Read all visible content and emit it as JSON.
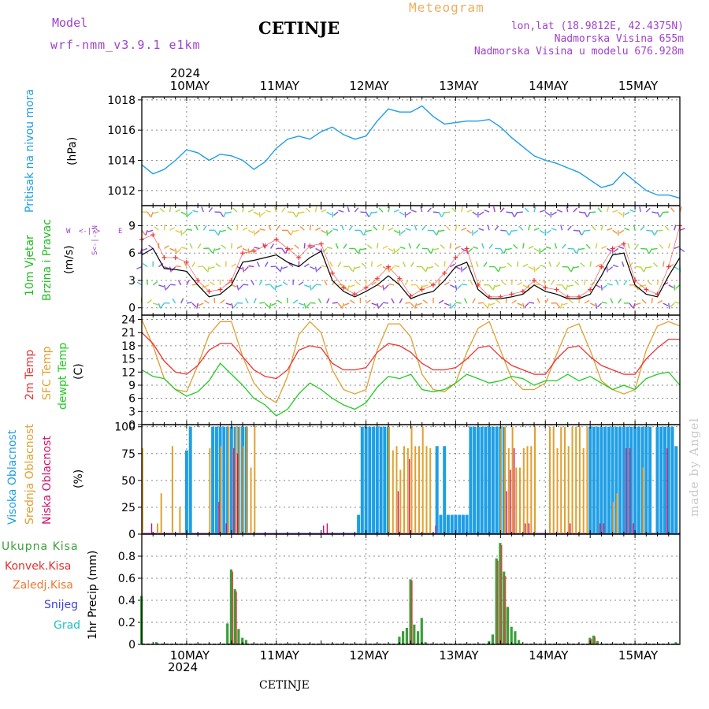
{
  "header": {
    "model_label": "Model",
    "model_name": "wrf-nmm_v3.9.1 e1km",
    "title": "CETINJE",
    "meteogram_label": "Meteogram",
    "location": "lon,lat (18.9812E, 42.4375N)",
    "elevation": "Nadmorska Visina 655m",
    "model_elevation": "Nadmorska Visina u modelu 676.928m",
    "watermark": "made by Angel",
    "footer": "CETINJE"
  },
  "time_axis": {
    "year": "2024",
    "day_labels": [
      "10MAY",
      "11MAY",
      "12MAY",
      "13MAY",
      "14MAY",
      "15MAY"
    ]
  },
  "colors": {
    "pressure": "#1e9ee6",
    "wind_label": "#22bb22",
    "temp_2m": "#ee3333",
    "temp_sfc": "#e0a030",
    "dewpt": "#22cc22",
    "cloud_high": "#1e9ee6",
    "cloud_mid": "#e0a030",
    "cloud_low": "#d0106a",
    "precip_total": "#3aa03a",
    "precip_conv": "#e03030",
    "precip_ice": "#f07830",
    "precip_snow": "#4040dd",
    "precip_grad": "#20c0c0",
    "header_purple": "#a040cc",
    "meteogram_orange": "#e8b060"
  },
  "chart_data": [
    {
      "type": "line",
      "panel": "pressure",
      "ylabel": "Pritisak na nivou mora",
      "unit": "(hPa)",
      "ylim": [
        1011,
        1018.2
      ],
      "yticks": [
        1012,
        1014,
        1016,
        1018
      ],
      "x_hours": [
        0,
        3,
        6,
        9,
        12,
        15,
        18,
        21,
        24,
        27,
        30,
        33,
        36,
        39,
        42,
        45,
        48,
        51,
        54,
        57,
        60,
        63,
        66,
        69,
        72,
        75,
        78,
        81,
        84,
        87,
        90,
        93,
        96,
        99,
        102,
        105,
        108,
        111,
        114,
        117,
        120,
        123,
        126,
        129,
        132,
        135,
        138,
        141,
        144
      ],
      "series": [
        {
          "values": [
            1013.7,
            1013.1,
            1013.4,
            1014.0,
            1014.7,
            1014.5,
            1014.0,
            1014.4,
            1014.3,
            1014.0,
            1013.4,
            1013.9,
            1014.8,
            1015.4,
            1015.6,
            1015.4,
            1015.9,
            1016.2,
            1015.7,
            1015.4,
            1015.6,
            1016.6,
            1017.4,
            1017.2,
            1017.2,
            1017.6,
            1016.9,
            1016.4,
            1016.5,
            1016.6,
            1016.6,
            1016.7,
            1016.2,
            1015.5,
            1014.9,
            1014.3,
            1014.0,
            1013.8,
            1013.5,
            1013.2,
            1012.7,
            1012.2,
            1012.4,
            1013.2,
            1012.6,
            1012.0,
            1011.7,
            1011.7,
            1011.5
          ]
        }
      ]
    },
    {
      "type": "line",
      "panel": "wind",
      "ylabel": "10m Vjetar",
      "ylabel2": "Brzina i Pravac",
      "unit": "(m/s)",
      "compass": [
        "W",
        "<-|->",
        "E",
        "S",
        "N"
      ],
      "ylim": [
        -0.8,
        11.2
      ],
      "yticks": [
        0,
        3,
        6,
        9
      ],
      "x_hours": [
        0,
        3,
        6,
        9,
        12,
        15,
        18,
        21,
        24,
        27,
        30,
        33,
        36,
        39,
        42,
        45,
        48,
        51,
        54,
        57,
        60,
        63,
        66,
        69,
        72,
        75,
        78,
        81,
        84,
        87,
        90,
        93,
        96,
        99,
        102,
        105,
        108,
        111,
        114,
        117,
        120,
        123,
        126,
        129,
        132,
        135,
        138,
        141,
        144
      ],
      "series": [
        {
          "values": [
            5.8,
            6.5,
            4.3,
            4.2,
            4.0,
            2.5,
            1.2,
            1.5,
            2.5,
            5.0,
            5.2,
            5.5,
            5.8,
            5.0,
            4.5,
            5.5,
            6.2,
            3.0,
            1.8,
            1.2,
            1.8,
            2.5,
            3.5,
            2.5,
            1.0,
            1.5,
            1.8,
            3.0,
            4.5,
            5.0,
            2.0,
            1.0,
            1.0,
            1.2,
            1.5,
            2.5,
            1.8,
            1.5,
            1.0,
            1.0,
            1.5,
            3.5,
            5.8,
            6.0,
            2.5,
            1.5,
            1.2,
            3.5,
            5.5
          ]
        },
        {
          "values": [
            7.5,
            8.0,
            5.5,
            5.5,
            5.0,
            3.0,
            1.8,
            2.0,
            3.0,
            6.0,
            6.2,
            6.8,
            7.5,
            6.5,
            5.5,
            6.8,
            7.0,
            3.8,
            2.2,
            1.5,
            2.2,
            3.2,
            4.5,
            3.2,
            1.3,
            2.0,
            2.5,
            3.8,
            5.5,
            6.5,
            2.5,
            1.2,
            1.2,
            1.5,
            1.8,
            3.0,
            2.2,
            2.0,
            1.2,
            1.2,
            2.0,
            4.5,
            6.5,
            7.0,
            3.0,
            2.0,
            1.5,
            4.5,
            9.0
          ]
        }
      ]
    },
    {
      "type": "line",
      "panel": "temperature",
      "ylabel": "2m Temp",
      "ylabel2": "SFC Temp",
      "ylabel3": "dewpt Temp",
      "unit": "(C)",
      "ylim": [
        0,
        25
      ],
      "yticks": [
        0,
        3,
        6,
        9,
        12,
        15,
        18,
        21,
        24
      ],
      "x_hours": [
        0,
        3,
        6,
        9,
        12,
        15,
        18,
        21,
        24,
        27,
        30,
        33,
        36,
        39,
        42,
        45,
        48,
        51,
        54,
        57,
        60,
        63,
        66,
        69,
        72,
        75,
        78,
        81,
        84,
        87,
        90,
        93,
        96,
        99,
        102,
        105,
        108,
        111,
        114,
        117,
        120,
        123,
        126,
        129,
        132,
        135,
        138,
        141,
        144
      ],
      "series": [
        {
          "name": "2m Temp",
          "values": [
            21.0,
            18.5,
            14.5,
            12.0,
            11.5,
            13.5,
            17.0,
            18.5,
            18.5,
            15.5,
            12.5,
            11.0,
            10.5,
            12.5,
            17.0,
            18.0,
            17.5,
            14.0,
            12.5,
            12.5,
            13.0,
            16.5,
            18.5,
            18.0,
            16.5,
            14.0,
            12.5,
            12.5,
            13.0,
            15.0,
            17.5,
            18.0,
            15.5,
            13.5,
            12.5,
            11.5,
            11.5,
            15.0,
            17.5,
            18.0,
            15.5,
            13.5,
            12.5,
            11.5,
            11.5,
            15.0,
            17.5,
            19.5,
            19.5
          ]
        },
        {
          "name": "SFC Temp",
          "values": [
            24.0,
            18.0,
            10.5,
            8.0,
            7.5,
            13.5,
            20.5,
            23.5,
            23.5,
            15.5,
            9.5,
            6.5,
            5.0,
            11.0,
            20.5,
            23.5,
            21.0,
            12.5,
            8.0,
            7.0,
            8.0,
            17.0,
            23.0,
            23.0,
            20.0,
            11.5,
            8.0,
            7.5,
            9.5,
            16.5,
            22.0,
            23.5,
            17.0,
            10.5,
            8.0,
            8.0,
            9.5,
            16.0,
            22.0,
            23.0,
            17.0,
            10.0,
            8.0,
            7.0,
            8.0,
            17.0,
            22.5,
            23.5,
            22.5
          ]
        },
        {
          "name": "dewpt Temp",
          "values": [
            12.5,
            11.0,
            10.5,
            8.0,
            6.5,
            7.5,
            10.0,
            14.0,
            11.5,
            9.0,
            6.0,
            4.5,
            2.0,
            3.5,
            7.0,
            9.5,
            8.0,
            6.0,
            4.5,
            3.5,
            5.0,
            8.5,
            11.0,
            10.5,
            11.5,
            8.0,
            7.5,
            8.0,
            9.5,
            11.5,
            10.5,
            9.5,
            10.0,
            11.0,
            10.5,
            9.0,
            10.0,
            10.0,
            11.5,
            10.0,
            11.0,
            9.5,
            8.0,
            9.0,
            8.0,
            10.5,
            11.5,
            12.0,
            9.0
          ]
        }
      ]
    },
    {
      "type": "bar",
      "panel": "cloud",
      "ylabel": "Visoka Oblacnost",
      "ylabel2": "Srednja Oblacnost",
      "ylabel3": "Niska Oblacnost",
      "unit": "(%)",
      "ylim": [
        0,
        102
      ],
      "yticks": [
        0,
        25,
        50,
        75,
        100
      ],
      "series": [
        {
          "name": "Visoka Oblacnost",
          "hours": [
            12,
            13,
            19,
            20,
            21,
            22,
            23,
            24,
            25,
            26,
            27,
            28,
            58,
            59,
            60,
            61,
            62,
            63,
            64,
            65,
            66,
            79,
            80,
            81,
            82,
            83,
            84,
            85,
            86,
            87,
            88,
            89,
            90,
            91,
            92,
            93,
            94,
            95,
            96,
            97,
            120,
            121,
            122,
            123,
            124,
            125,
            126,
            127,
            128,
            129,
            130,
            131,
            132,
            133,
            134,
            135,
            136,
            138,
            139,
            140,
            141,
            142,
            143
          ],
          "values": [
            78,
            100,
            100,
            100,
            100,
            100,
            100,
            100,
            100,
            100,
            100,
            100,
            18,
            100,
            100,
            100,
            100,
            100,
            100,
            100,
            100,
            82,
            18,
            82,
            18,
            18,
            18,
            18,
            18,
            18,
            100,
            100,
            100,
            100,
            100,
            100,
            100,
            100,
            100,
            100,
            100,
            100,
            100,
            100,
            100,
            100,
            100,
            100,
            100,
            100,
            100,
            100,
            100,
            100,
            100,
            100,
            100,
            100,
            100,
            100,
            100,
            100,
            82
          ]
        },
        {
          "name": "Srednja Oblacnost",
          "hours": [
            0,
            4,
            5,
            8,
            10,
            18,
            21,
            23,
            25,
            26,
            27,
            28,
            29,
            30,
            66,
            67,
            68,
            69,
            70,
            71,
            72,
            73,
            74,
            75,
            76,
            77,
            96,
            97,
            98,
            99,
            100,
            101,
            102,
            103,
            104,
            105,
            109,
            110,
            111,
            112,
            113,
            114,
            115,
            116,
            117,
            118,
            119,
            126,
            127,
            134
          ],
          "values": [
            80,
            10,
            38,
            82,
            25,
            80,
            82,
            100,
            100,
            100,
            82,
            100,
            62,
            100,
            100,
            78,
            82,
            60,
            82,
            80,
            100,
            82,
            82,
            100,
            82,
            80,
            100,
            100,
            80,
            100,
            62,
            62,
            80,
            82,
            82,
            100,
            100,
            100,
            80,
            100,
            100,
            82,
            100,
            100,
            100,
            80,
            100,
            30,
            38,
            62
          ]
        },
        {
          "name": "Niska Oblacnost",
          "hours": [
            2,
            20,
            22,
            24,
            25,
            48,
            49,
            68,
            71,
            78,
            97,
            98,
            99,
            102,
            103,
            114,
            122,
            123,
            129,
            130,
            131,
            140
          ],
          "values": [
            10,
            30,
            10,
            80,
            75,
            8,
            10,
            40,
            70,
            8,
            40,
            60,
            80,
            10,
            10,
            10,
            10,
            10,
            80,
            80,
            10,
            80
          ]
        }
      ]
    },
    {
      "type": "bar",
      "panel": "precip",
      "ylabel": "1hr Precip (mm)",
      "legend": [
        "Ukupna Kisa",
        "Konvek.Kisa",
        "Zaledj.Kisa",
        "Snijeg",
        "Grad"
      ],
      "ylim": [
        0,
        1.0
      ],
      "yticks": [
        0,
        0.2,
        0.4,
        0.6,
        0.8
      ],
      "series": [
        {
          "name": "Ukupna Kisa",
          "hours": [
            0,
            4,
            23,
            24,
            25,
            26,
            27,
            28,
            69,
            70,
            71,
            72,
            73,
            74,
            75,
            76,
            93,
            94,
            95,
            96,
            97,
            98,
            99,
            100,
            101,
            120,
            121,
            122,
            143
          ],
          "values": [
            0.44,
            0.02,
            0.19,
            0.68,
            0.5,
            0.14,
            0.06,
            0.04,
            0.07,
            0.12,
            0.15,
            0.59,
            0.18,
            0.12,
            0.24,
            0.02,
            0.03,
            0.09,
            0.78,
            0.92,
            0.66,
            0.34,
            0.16,
            0.12,
            0.04,
            0.06,
            0.08,
            0.03,
            0.02
          ]
        },
        {
          "name": "Konvek.Kisa",
          "hours": [
            24,
            25,
            72,
            95,
            96,
            97,
            120,
            121
          ],
          "values": [
            0.66,
            0.48,
            0.58,
            0.76,
            0.9,
            0.62,
            0.05,
            0.07
          ]
        }
      ]
    }
  ]
}
